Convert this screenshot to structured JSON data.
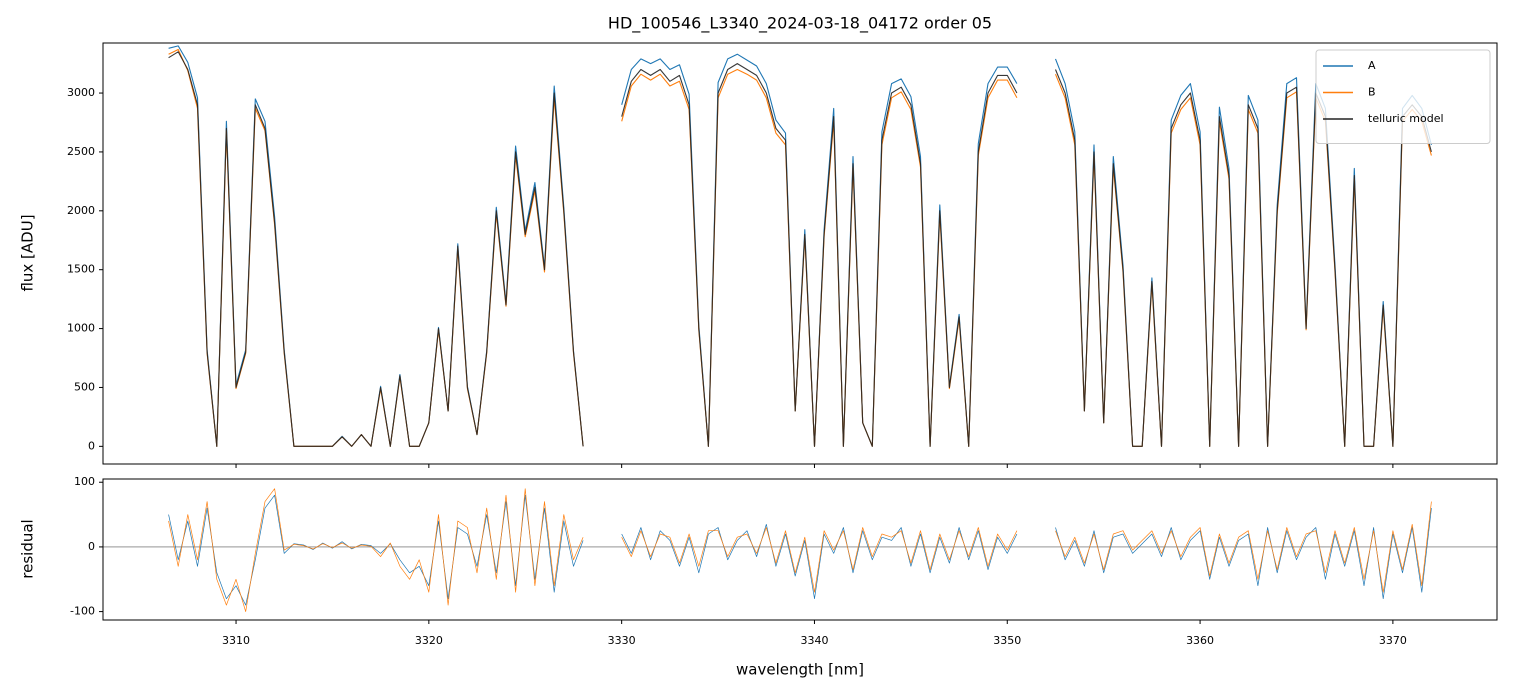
{
  "chart_data": [
    {
      "type": "line",
      "title": "HD_100546_L3340_2024-03-18_04172  order 05",
      "ylabel": "flux [ADU]",
      "xlim": [
        3303.1,
        3375.4
      ],
      "ylim": [
        -150,
        3425
      ],
      "yticks": [
        0,
        500,
        1000,
        1500,
        2000,
        2500,
        3000
      ],
      "legend": "upper right",
      "x": [
        3306.5,
        3307,
        3307.5,
        3308,
        3308.5,
        3309,
        3309.5,
        3310,
        3310.5,
        3311,
        3311.5,
        3312,
        3312.5,
        3313,
        3313.5,
        3314,
        3314.5,
        3315,
        3315.5,
        3316,
        3316.5,
        3317,
        3317.5,
        3318,
        3318.5,
        3319,
        3319.5,
        3320,
        3320.5,
        3321,
        3321.5,
        3322,
        3322.5,
        3323,
        3323.5,
        3324,
        3324.5,
        3325,
        3325.5,
        3326,
        3326.5,
        3327,
        3327.5,
        3328,
        3328.5,
        3329,
        3329.5,
        3330,
        3330.5,
        3331,
        3331.5,
        3332,
        3332.5,
        3333,
        3333.5,
        3334,
        3334.5,
        3335,
        3335.5,
        3336,
        3336.5,
        3337,
        3337.5,
        3338,
        3338.5,
        3339,
        3339.5,
        3340,
        3340.5,
        3341,
        3341.5,
        3342,
        3342.5,
        3343,
        3343.5,
        3344,
        3344.5,
        3345,
        3345.5,
        3346,
        3346.5,
        3347,
        3347.5,
        3348,
        3348.5,
        3349,
        3349.5,
        3350,
        3350.5,
        3351,
        3351.5,
        3352,
        3352.5,
        3353,
        3353.5,
        3354,
        3354.5,
        3355,
        3355.5,
        3356,
        3356.5,
        3357,
        3357.5,
        3358,
        3358.5,
        3359,
        3359.5,
        3360,
        3360.5,
        3361,
        3361.5,
        3362,
        3362.5,
        3363,
        3363.5,
        3364,
        3364.5,
        3365,
        3365.5,
        3366,
        3366.5,
        3367,
        3367.5,
        3368,
        3368.5,
        3369,
        3369.5,
        3370,
        3370.5,
        3371,
        3371.5,
        3372
      ],
      "series": [
        {
          "name": "A",
          "color": "#1f77b4",
          "values": [
            3380,
            3400,
            3260,
            2960,
            820,
            0,
            2760,
            520,
            820,
            2950,
            2760,
            1950,
            820,
            0,
            0,
            0,
            0,
            0,
            85,
            0,
            100,
            0,
            510,
            0,
            610,
            0,
            0,
            200,
            1010,
            300,
            1720,
            510,
            100,
            810,
            2030,
            1220,
            2550,
            1830,
            2240,
            1520,
            3060,
            2030,
            810,
            0,
            null,
            null,
            null,
            2900,
            3200,
            3290,
            3250,
            3290,
            3200,
            3240,
            2990,
            1030,
            0,
            3090,
            3290,
            3330,
            3280,
            3230,
            3080,
            2770,
            2660,
            300,
            1840,
            0,
            1840,
            2870,
            0,
            2460,
            200,
            0,
            2670,
            3080,
            3120,
            2970,
            2460,
            0,
            2050,
            510,
            1120,
            0,
            2570,
            3080,
            3220,
            3220,
            3080,
            null,
            null,
            null,
            3290,
            3080,
            2670,
            300,
            2560,
            200,
            2460,
            1540,
            0,
            0,
            1430,
            0,
            2770,
            2980,
            3080,
            2670,
            0,
            2880,
            2360,
            0,
            2980,
            2770,
            0,
            2050,
            3080,
            3130,
            1020,
            3080,
            2870,
            1540,
            0,
            2360,
            0,
            0,
            1230,
            0,
            2870,
            2980,
            2870,
            2560
          ]
        },
        {
          "name": "B",
          "color": "#ff7f0e",
          "values": [
            3330,
            3370,
            3190,
            2870,
            790,
            0,
            2680,
            490,
            790,
            2870,
            2680,
            1880,
            790,
            0,
            0,
            0,
            0,
            0,
            80,
            0,
            100,
            0,
            490,
            0,
            590,
            0,
            0,
            200,
            990,
            300,
            1680,
            490,
            100,
            790,
            1980,
            1190,
            2470,
            1780,
            2170,
            1480,
            2960,
            1980,
            790,
            0,
            null,
            null,
            null,
            2760,
            3060,
            3160,
            3110,
            3160,
            3060,
            3100,
            2860,
            990,
            0,
            2960,
            3160,
            3200,
            3160,
            3110,
            2960,
            2660,
            2560,
            300,
            1780,
            0,
            1780,
            2760,
            0,
            2370,
            200,
            0,
            2560,
            2960,
            3010,
            2860,
            2370,
            0,
            1970,
            490,
            1080,
            0,
            2470,
            2960,
            3110,
            3110,
            2960,
            null,
            null,
            null,
            3160,
            2960,
            2560,
            300,
            2470,
            200,
            2370,
            1480,
            0,
            0,
            1380,
            0,
            2660,
            2860,
            2960,
            2560,
            0,
            2760,
            2270,
            0,
            2860,
            2660,
            0,
            1970,
            2960,
            3010,
            990,
            2960,
            2760,
            1480,
            0,
            2270,
            0,
            0,
            1180,
            0,
            2760,
            2860,
            2760,
            2470
          ]
        },
        {
          "name": "telluric model",
          "color": "#222222",
          "values": [
            3300,
            3350,
            3200,
            2900,
            800,
            0,
            2700,
            500,
            800,
            2900,
            2700,
            1900,
            800,
            0,
            0,
            0,
            0,
            0,
            80,
            0,
            100,
            0,
            500,
            0,
            600,
            0,
            0,
            200,
            1000,
            300,
            1700,
            500,
            100,
            800,
            2000,
            1200,
            2500,
            1800,
            2200,
            1500,
            3000,
            2000,
            800,
            0,
            null,
            null,
            null,
            2800,
            3100,
            3200,
            3150,
            3200,
            3100,
            3150,
            2900,
            1000,
            0,
            3000,
            3200,
            3250,
            3200,
            3150,
            3000,
            2700,
            2600,
            300,
            1800,
            0,
            1800,
            2800,
            0,
            2400,
            200,
            0,
            2600,
            3000,
            3050,
            2900,
            2400,
            0,
            2000,
            500,
            1100,
            0,
            2500,
            3000,
            3150,
            3150,
            3000,
            null,
            null,
            null,
            3200,
            3000,
            2600,
            300,
            2500,
            200,
            2400,
            1500,
            0,
            0,
            1400,
            0,
            2700,
            2900,
            3000,
            2600,
            0,
            2800,
            2300,
            0,
            2900,
            2700,
            0,
            2000,
            3000,
            3050,
            1000,
            3000,
            2800,
            1500,
            0,
            2300,
            0,
            0,
            1200,
            0,
            2800,
            2900,
            2800,
            2500
          ]
        }
      ]
    },
    {
      "type": "line",
      "ylabel": "residual",
      "xlabel": "wavelength [nm]",
      "xlim": [
        3303.1,
        3375.4
      ],
      "ylim": [
        -113,
        105
      ],
      "xticks": [
        3310,
        3320,
        3330,
        3340,
        3350,
        3360,
        3370
      ],
      "yticks": [
        -100,
        0,
        100
      ],
      "hline": 0,
      "x": [
        3306.5,
        3307,
        3307.5,
        3308,
        3308.5,
        3309,
        3309.5,
        3310,
        3310.5,
        3311,
        3311.5,
        3312,
        3312.5,
        3313,
        3313.5,
        3314,
        3314.5,
        3315,
        3315.5,
        3316,
        3316.5,
        3317,
        3317.5,
        3318,
        3318.5,
        3319,
        3319.5,
        3320,
        3320.5,
        3321,
        3321.5,
        3322,
        3322.5,
        3323,
        3323.5,
        3324,
        3324.5,
        3325,
        3325.5,
        3326,
        3326.5,
        3327,
        3327.5,
        3328,
        3328.5,
        3329,
        3329.5,
        3330,
        3330.5,
        3331,
        3331.5,
        3332,
        3332.5,
        3333,
        3333.5,
        3334,
        3334.5,
        3335,
        3335.5,
        3336,
        3336.5,
        3337,
        3337.5,
        3338,
        3338.5,
        3339,
        3339.5,
        3340,
        3340.5,
        3341,
        3341.5,
        3342,
        3342.5,
        3343,
        3343.5,
        3344,
        3344.5,
        3345,
        3345.5,
        3346,
        3346.5,
        3347,
        3347.5,
        3348,
        3348.5,
        3349,
        3349.5,
        3350,
        3350.5,
        3351,
        3351.5,
        3352,
        3352.5,
        3353,
        3353.5,
        3354,
        3354.5,
        3355,
        3355.5,
        3356,
        3356.5,
        3357,
        3357.5,
        3358,
        3358.5,
        3359,
        3359.5,
        3360,
        3360.5,
        3361,
        3361.5,
        3362,
        3362.5,
        3363,
        3363.5,
        3364,
        3364.5,
        3365,
        3365.5,
        3366,
        3366.5,
        3367,
        3367.5,
        3368,
        3368.5,
        3369,
        3369.5,
        3370,
        3370.5,
        3371,
        3371.5,
        3372
      ],
      "series": [
        {
          "name": "A",
          "color": "#1f77b4",
          "values": [
            50,
            -20,
            40,
            -30,
            60,
            -40,
            -80,
            -60,
            -90,
            -20,
            60,
            80,
            -10,
            5,
            3,
            -4,
            6,
            -2,
            8,
            -3,
            4,
            2,
            -10,
            5,
            -20,
            -40,
            -30,
            -60,
            40,
            -80,
            30,
            20,
            -30,
            50,
            -40,
            70,
            -60,
            80,
            -50,
            60,
            -70,
            40,
            -30,
            10,
            null,
            null,
            null,
            20,
            -10,
            30,
            -20,
            25,
            10,
            -30,
            15,
            -40,
            20,
            30,
            -20,
            10,
            25,
            -15,
            35,
            -30,
            20,
            -45,
            10,
            -80,
            20,
            -10,
            30,
            -40,
            25,
            -20,
            15,
            10,
            30,
            -30,
            20,
            -40,
            15,
            -25,
            30,
            -20,
            25,
            -35,
            15,
            -10,
            20,
            null,
            null,
            null,
            30,
            -20,
            10,
            -30,
            25,
            -40,
            15,
            20,
            -10,
            5,
            20,
            -15,
            30,
            -20,
            10,
            25,
            -50,
            15,
            -30,
            10,
            20,
            -60,
            30,
            -40,
            25,
            -20,
            15,
            30,
            -50,
            20,
            -30,
            25,
            -60,
            30,
            -80,
            20,
            -40,
            30,
            -70,
            60
          ]
        },
        {
          "name": "B",
          "color": "#ff7f0e",
          "values": [
            40,
            -30,
            50,
            -20,
            70,
            -50,
            -90,
            -50,
            -100,
            -10,
            70,
            90,
            -5,
            4,
            2,
            -3,
            5,
            -1,
            6,
            -2,
            3,
            1,
            -15,
            6,
            -30,
            -50,
            -20,
            -70,
            50,
            -90,
            40,
            30,
            -40,
            60,
            -50,
            80,
            -70,
            90,
            -60,
            70,
            -60,
            50,
            -20,
            15,
            null,
            null,
            null,
            15,
            -15,
            25,
            -15,
            20,
            15,
            -25,
            20,
            -30,
            25,
            25,
            -15,
            15,
            20,
            -10,
            30,
            -25,
            25,
            -40,
            15,
            -70,
            25,
            -5,
            25,
            -35,
            30,
            -15,
            20,
            15,
            25,
            -25,
            25,
            -35,
            20,
            -20,
            25,
            -15,
            30,
            -30,
            20,
            -5,
            25,
            null,
            null,
            null,
            25,
            -15,
            15,
            -25,
            20,
            -35,
            20,
            25,
            -5,
            10,
            25,
            -10,
            25,
            -15,
            15,
            30,
            -45,
            20,
            -25,
            15,
            25,
            -50,
            25,
            -35,
            30,
            -15,
            20,
            25,
            -40,
            25,
            -25,
            30,
            -50,
            25,
            -70,
            25,
            -35,
            35,
            -60,
            70
          ]
        }
      ]
    }
  ]
}
